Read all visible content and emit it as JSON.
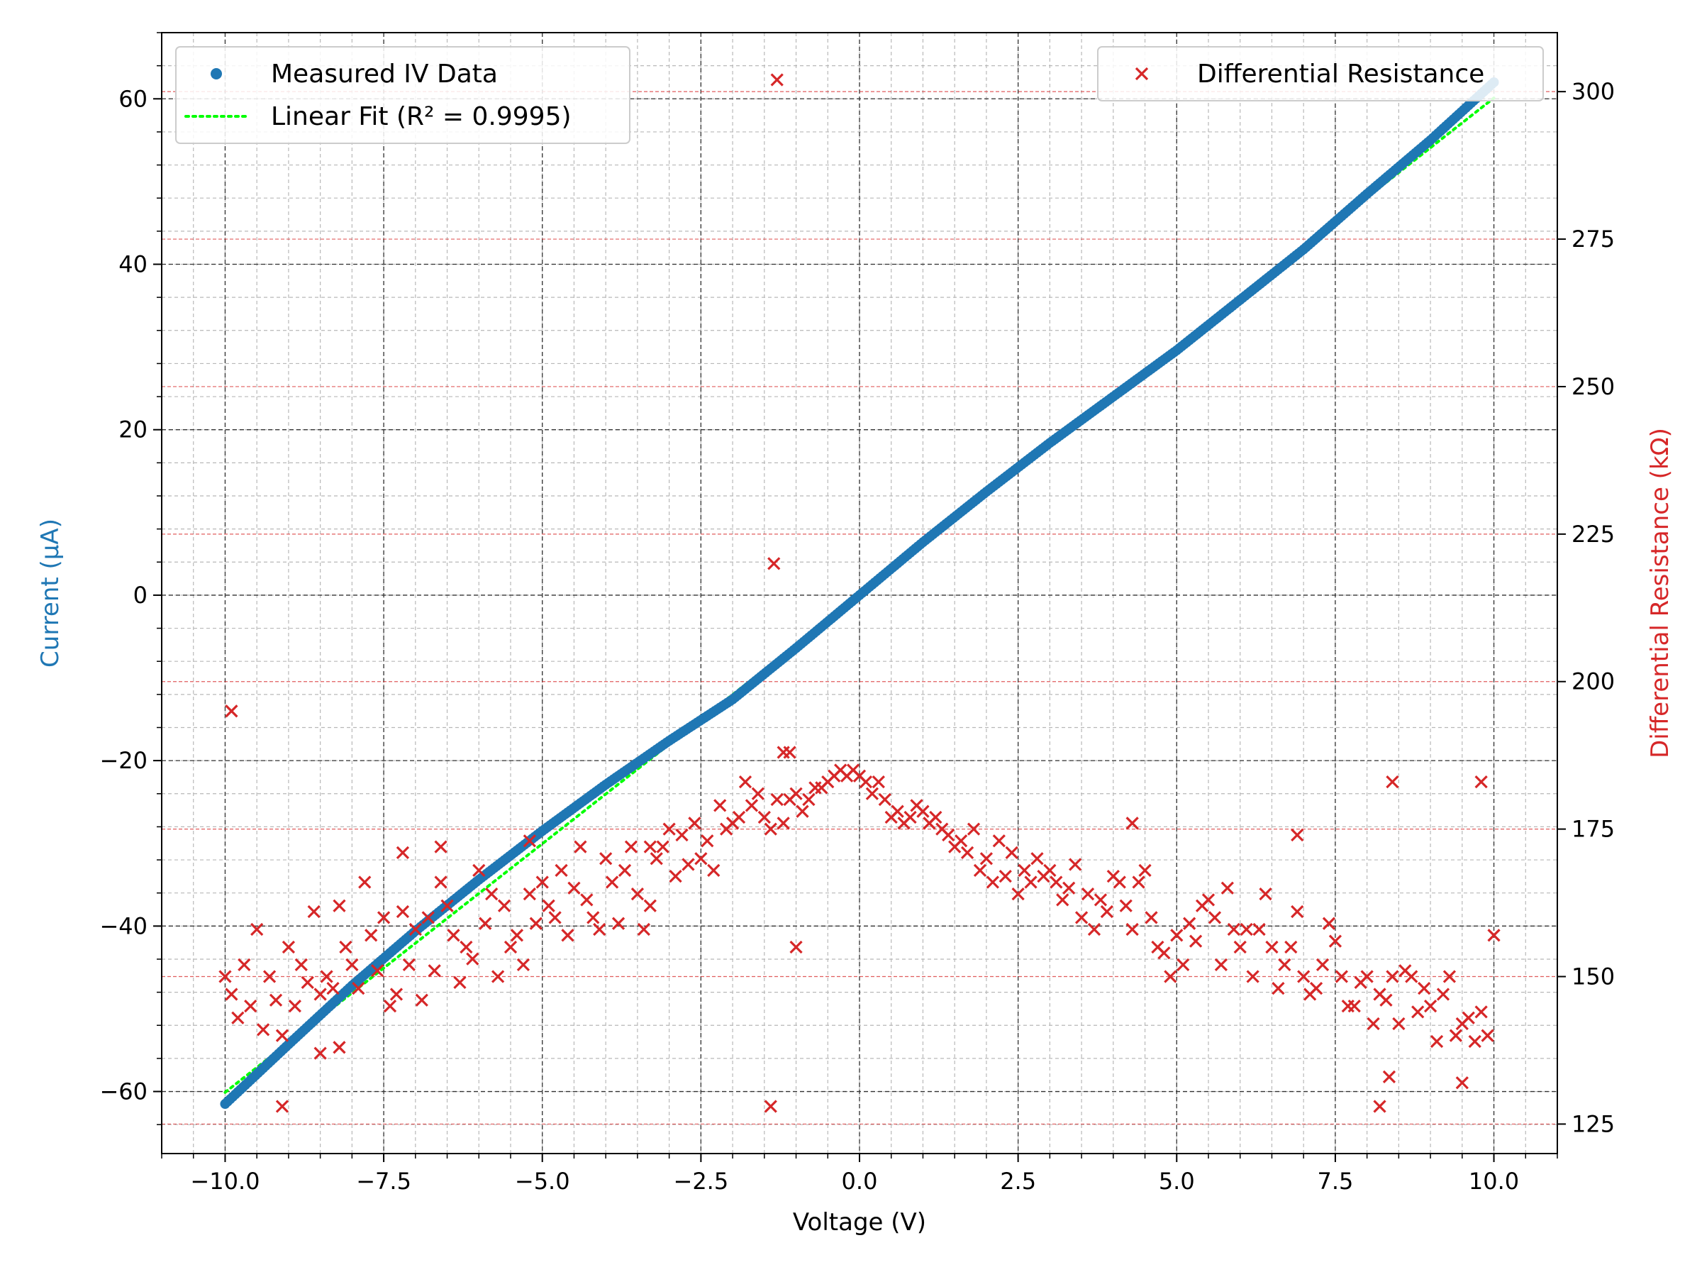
{
  "chart_data": {
    "type": "scatter",
    "title": "",
    "xlabel": "Voltage (V)",
    "ylabel": "Current (μA)",
    "y2label": "Differential Resistance (kΩ)",
    "xlim": [
      -11,
      11
    ],
    "ylim": [
      -67.5,
      68
    ],
    "y2lim": [
      120,
      310
    ],
    "x_ticks": [
      -10.0,
      -7.5,
      -5.0,
      -2.5,
      0.0,
      2.5,
      5.0,
      7.5,
      10.0
    ],
    "x_tick_labels": [
      "−10.0",
      "−7.5",
      "−5.0",
      "−2.5",
      "0.0",
      "2.5",
      "5.0",
      "7.5",
      "10.0"
    ],
    "y_ticks": [
      -60,
      -40,
      -20,
      0,
      20,
      40,
      60
    ],
    "y_tick_labels": [
      "−60",
      "−40",
      "−20",
      "0",
      "20",
      "40",
      "60"
    ],
    "y2_ticks": [
      125,
      150,
      175,
      200,
      225,
      250,
      275,
      300
    ],
    "y2_tick_labels": [
      "125",
      "150",
      "175",
      "200",
      "225",
      "250",
      "275",
      "300"
    ],
    "grid": true,
    "colors": {
      "iv": "#1f77b4",
      "fit": "#00ff00",
      "resistance": "#d62728",
      "ylabel": "#1f77b4",
      "y2label": "#d62728"
    },
    "legend_left": {
      "position": "upper-left",
      "entries": [
        "Measured IV Data",
        "Linear Fit (R² = 0.9995)"
      ]
    },
    "legend_right": {
      "position": "upper-right",
      "entries": [
        "Differential Resistance"
      ]
    },
    "series": [
      {
        "name": "Measured IV Data",
        "kind": "scatter",
        "axis": "left",
        "x": [
          -10.0,
          -9.0,
          -8.0,
          -7.0,
          -6.0,
          -5.0,
          -4.0,
          -3.0,
          -2.0,
          -1.0,
          0.0,
          1.0,
          2.0,
          3.0,
          4.0,
          5.0,
          6.0,
          7.0,
          8.0,
          9.0,
          10.0
        ],
        "y": [
          -61.5,
          -54.3,
          -47.2,
          -40.6,
          -34.4,
          -28.5,
          -22.9,
          -17.6,
          -12.6,
          -6.4,
          0.0,
          6.4,
          12.5,
          18.4,
          24.0,
          29.6,
          35.7,
          41.8,
          48.5,
          55.0,
          62.0
        ]
      },
      {
        "name": "Linear Fit (R² = 0.9995)",
        "kind": "line",
        "axis": "left",
        "x": [
          -10.0,
          10.0
        ],
        "y": [
          -60.1,
          60.1
        ]
      },
      {
        "name": "Differential Resistance",
        "kind": "scatter",
        "axis": "right",
        "x": [
          -10.0,
          -9.9,
          -9.8,
          -9.7,
          -9.6,
          -9.5,
          -9.4,
          -9.3,
          -9.2,
          -9.1,
          -9.0,
          -8.9,
          -8.8,
          -8.7,
          -8.6,
          -8.5,
          -8.4,
          -8.3,
          -8.2,
          -8.1,
          -8.0,
          -7.9,
          -7.8,
          -7.7,
          -7.6,
          -7.5,
          -7.4,
          -7.3,
          -7.2,
          -7.1,
          -7.0,
          -6.9,
          -6.8,
          -6.7,
          -6.6,
          -6.5,
          -6.4,
          -6.3,
          -6.2,
          -6.1,
          -6.0,
          -5.9,
          -5.8,
          -5.7,
          -5.6,
          -5.5,
          -5.4,
          -5.3,
          -5.2,
          -5.1,
          -5.0,
          -4.9,
          -4.8,
          -4.7,
          -4.6,
          -4.5,
          -4.4,
          -4.3,
          -4.2,
          -4.1,
          -4.0,
          -3.9,
          -3.8,
          -3.7,
          -3.6,
          -3.5,
          -3.4,
          -3.3,
          -3.2,
          -3.1,
          -3.0,
          -2.9,
          -2.8,
          -2.7,
          -2.6,
          -2.5,
          -2.4,
          -2.3,
          -2.2,
          -2.1,
          -2.0,
          -1.9,
          -1.8,
          -1.7,
          -1.6,
          -1.5,
          -1.4,
          -1.3,
          -1.2,
          -1.1,
          -1.0,
          -0.9,
          -0.8,
          -0.7,
          -0.6,
          -0.5,
          -0.4,
          -0.3,
          -0.2,
          -0.1,
          0.0,
          0.1,
          0.2,
          0.3,
          0.4,
          0.5,
          0.6,
          0.7,
          0.8,
          0.9,
          1.0,
          1.1,
          1.2,
          1.3,
          1.4,
          1.5,
          1.6,
          1.7,
          1.8,
          1.9,
          2.0,
          2.1,
          2.2,
          2.3,
          2.4,
          2.5,
          2.6,
          2.7,
          2.8,
          2.9,
          3.0,
          3.1,
          3.2,
          3.3,
          3.4,
          3.5,
          3.6,
          3.7,
          3.8,
          3.9,
          4.0,
          4.1,
          4.2,
          4.3,
          4.4,
          4.5,
          4.6,
          4.7,
          4.8,
          4.9,
          5.0,
          5.1,
          5.2,
          5.3,
          5.4,
          5.5,
          5.6,
          5.7,
          5.8,
          5.9,
          6.0,
          6.1,
          6.2,
          6.3,
          6.4,
          6.5,
          6.6,
          6.7,
          6.8,
          6.9,
          7.0,
          7.1,
          7.2,
          7.3,
          7.4,
          7.5,
          7.6,
          7.7,
          7.8,
          7.9,
          8.0,
          8.1,
          8.2,
          8.3,
          8.4,
          8.5,
          8.6,
          8.7,
          8.8,
          8.9,
          9.0,
          9.1,
          9.2,
          9.3,
          9.4,
          9.5,
          9.6,
          9.7,
          9.8,
          9.9,
          10.0,
          -9.9,
          -9.1,
          -8.5,
          -8.2,
          -7.2,
          -6.6,
          -5.2,
          -3.3,
          -1.4,
          -1.35,
          -1.3,
          -1.2,
          -1.1,
          -1.0,
          4.3,
          6.9,
          8.2,
          8.35,
          8.4,
          9.8,
          9.5
        ],
        "y": [
          150,
          147,
          143,
          152,
          145,
          158,
          141,
          150,
          146,
          140,
          155,
          145,
          152,
          149,
          161,
          147,
          150,
          148,
          162,
          155,
          152,
          148,
          166,
          157,
          151,
          160,
          145,
          147,
          161,
          152,
          158,
          146,
          160,
          151,
          166,
          162,
          157,
          149,
          155,
          153,
          168,
          159,
          164,
          150,
          162,
          155,
          157,
          152,
          164,
          159,
          166,
          162,
          160,
          168,
          157,
          165,
          172,
          163,
          160,
          158,
          170,
          166,
          159,
          168,
          172,
          164,
          158,
          162,
          170,
          172,
          175,
          167,
          174,
          169,
          176,
          170,
          173,
          168,
          179,
          175,
          176,
          177,
          183,
          179,
          181,
          177,
          175,
          180,
          176,
          180,
          181,
          178,
          180,
          182,
          182,
          183,
          184,
          185,
          184,
          185,
          184,
          183,
          181,
          183,
          180,
          177,
          178,
          176,
          177,
          179,
          178,
          176,
          177,
          175,
          174,
          172,
          173,
          171,
          175,
          168,
          170,
          166,
          173,
          167,
          171,
          164,
          168,
          166,
          170,
          167,
          168,
          166,
          163,
          165,
          169,
          160,
          164,
          158,
          163,
          161,
          167,
          166,
          162,
          158,
          166,
          168,
          160,
          155,
          154,
          150,
          157,
          152,
          159,
          156,
          162,
          163,
          160,
          152,
          165,
          158,
          155,
          158,
          150,
          158,
          164,
          155,
          148,
          152,
          155,
          161,
          150,
          147,
          148,
          152,
          159,
          156,
          150,
          145,
          145,
          149,
          150,
          142,
          147,
          146,
          150,
          142,
          151,
          150,
          144,
          148,
          145,
          139,
          147,
          150,
          140,
          142,
          143,
          139,
          144,
          140,
          157,
          195,
          128,
          137,
          138,
          171,
          172,
          173,
          172,
          128,
          220,
          302,
          188,
          188,
          155,
          176,
          174,
          128,
          133,
          183,
          183,
          132
        ]
      }
    ]
  }
}
